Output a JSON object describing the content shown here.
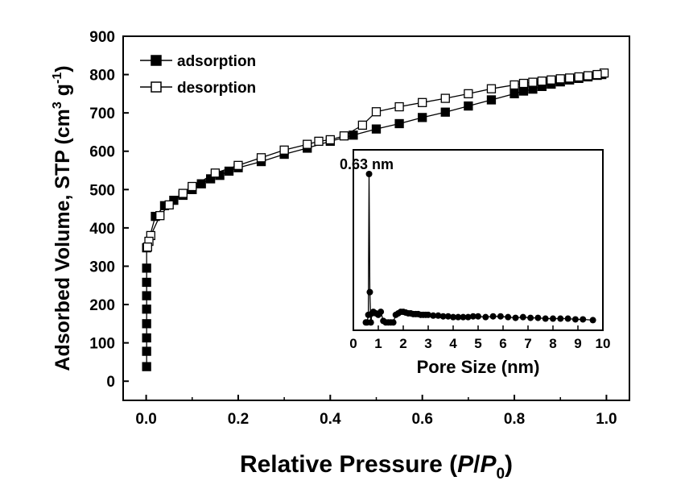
{
  "chart_data": [
    {
      "type": "line",
      "xlabel_parts": [
        "Relative Pressure (",
        "P",
        "/",
        "P",
        "0",
        ")"
      ],
      "ylabel_parts": [
        "Adsorbed Volume, STP (cm",
        "3",
        " g",
        "-1",
        ")"
      ],
      "xlim": [
        -0.05,
        1.05
      ],
      "ylim": [
        -50,
        900
      ],
      "xticks": [
        0.0,
        0.2,
        0.4,
        0.6,
        0.8,
        1.0
      ],
      "xtick_labels": [
        "0.0",
        "0.2",
        "0.4",
        "0.6",
        "0.8",
        "1.0"
      ],
      "yticks": [
        0,
        100,
        200,
        300,
        400,
        500,
        600,
        700,
        800,
        900
      ],
      "ytick_labels": [
        "0",
        "100",
        "200",
        "300",
        "400",
        "500",
        "600",
        "700",
        "800",
        "900"
      ],
      "legend_position": "top-left",
      "grid": false,
      "series": [
        {
          "name": "adsorption",
          "marker": "filled-square",
          "x": [
            0.001,
            0.001,
            0.001,
            0.001,
            0.001,
            0.001,
            0.001,
            0.001,
            0.001,
            0.02,
            0.04,
            0.06,
            0.08,
            0.1,
            0.12,
            0.14,
            0.16,
            0.18,
            0.2,
            0.25,
            0.3,
            0.35,
            0.4,
            0.45,
            0.5,
            0.55,
            0.6,
            0.65,
            0.7,
            0.75,
            0.8,
            0.82,
            0.84,
            0.86,
            0.88,
            0.9,
            0.92,
            0.94,
            0.96,
            0.98,
            0.99
          ],
          "y": [
            38,
            78,
            113,
            150,
            188,
            223,
            258,
            295,
            348,
            430,
            458,
            472,
            485,
            500,
            515,
            528,
            537,
            548,
            557,
            573,
            592,
            608,
            626,
            642,
            658,
            672,
            688,
            702,
            718,
            734,
            750,
            757,
            762,
            769,
            775,
            781,
            786,
            790,
            794,
            798,
            800
          ]
        },
        {
          "name": "desorption",
          "marker": "open-square",
          "x": [
            0.995,
            0.98,
            0.96,
            0.94,
            0.92,
            0.9,
            0.88,
            0.86,
            0.84,
            0.82,
            0.8,
            0.75,
            0.7,
            0.65,
            0.6,
            0.55,
            0.5,
            0.47,
            0.43,
            0.4,
            0.375,
            0.35,
            0.3,
            0.25,
            0.2,
            0.15,
            0.1,
            0.08,
            0.05,
            0.03,
            0.01,
            0.006,
            0.003
          ],
          "y": [
            804,
            800,
            797,
            794,
            791,
            789,
            786,
            783,
            780,
            777,
            773,
            763,
            750,
            738,
            727,
            716,
            703,
            668,
            640,
            630,
            626,
            618,
            603,
            583,
            563,
            543,
            508,
            490,
            460,
            432,
            380,
            365,
            350
          ]
        }
      ]
    },
    {
      "type": "line",
      "inset": true,
      "xlabel": "Pore Size (nm)",
      "xlim": [
        0,
        10
      ],
      "ylim": [
        0,
        1
      ],
      "xticks": [
        0,
        1,
        2,
        3,
        4,
        5,
        6,
        7,
        8,
        9,
        10
      ],
      "xtick_labels": [
        "0",
        "1",
        "2",
        "3",
        "4",
        "5",
        "6",
        "7",
        "8",
        "9",
        "10"
      ],
      "annotation": "0.63 nm",
      "annotation_x": 0.63,
      "series": [
        {
          "marker": "filled-circle",
          "x": [
            0.5,
            0.55,
            0.6,
            0.63,
            0.66,
            0.7,
            0.75,
            0.8,
            0.9,
            1.0,
            1.1,
            1.2,
            1.3,
            1.4,
            1.5,
            1.6,
            1.7,
            1.8,
            1.9,
            2.0,
            2.1,
            2.2,
            2.3,
            2.4,
            2.5,
            2.6,
            2.7,
            2.8,
            2.9,
            3.0,
            3.2,
            3.4,
            3.6,
            3.8,
            4.0,
            4.2,
            4.4,
            4.6,
            4.8,
            5.0,
            5.3,
            5.6,
            5.9,
            6.2,
            6.5,
            6.8,
            7.1,
            7.4,
            7.7,
            8.0,
            8.3,
            8.6,
            8.9,
            9.2,
            9.6
          ],
          "y": [
            0.02,
            0.02,
            0.07,
            1.0,
            0.22,
            0.02,
            0.08,
            0.09,
            0.08,
            0.07,
            0.09,
            0.03,
            0.02,
            0.02,
            0.02,
            0.02,
            0.07,
            0.08,
            0.09,
            0.09,
            0.085,
            0.08,
            0.08,
            0.075,
            0.075,
            0.075,
            0.07,
            0.07,
            0.07,
            0.07,
            0.065,
            0.065,
            0.06,
            0.06,
            0.055,
            0.055,
            0.055,
            0.055,
            0.06,
            0.06,
            0.055,
            0.06,
            0.06,
            0.055,
            0.05,
            0.055,
            0.05,
            0.05,
            0.045,
            0.045,
            0.045,
            0.045,
            0.04,
            0.04,
            0.035
          ]
        }
      ]
    }
  ]
}
